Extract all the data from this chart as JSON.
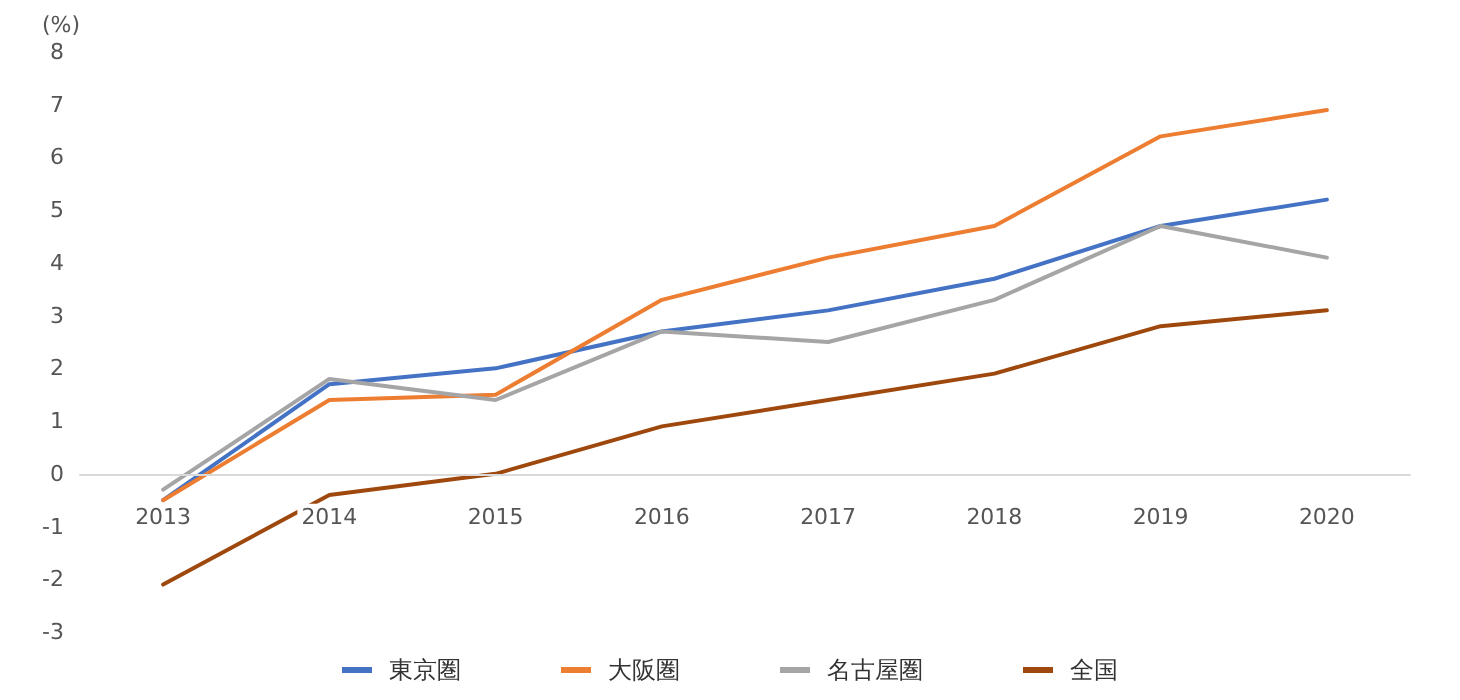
{
  "chart_data": {
    "type": "line",
    "ylabel": "(%)",
    "categories": [
      "2013",
      "2014",
      "2015",
      "2016",
      "2017",
      "2018",
      "2019",
      "2020"
    ],
    "series": [
      {
        "name": "東京圏",
        "color": "#4472c4",
        "values": [
          -0.5,
          1.7,
          2.0,
          2.7,
          3.1,
          3.7,
          4.7,
          5.2
        ]
      },
      {
        "name": "大阪圏",
        "color": "#ed7d31",
        "values": [
          -0.5,
          1.4,
          1.5,
          3.3,
          4.1,
          4.7,
          6.4,
          6.9
        ]
      },
      {
        "name": "名古屋圏",
        "color": "#a5a5a5",
        "values": [
          -0.3,
          1.8,
          1.4,
          2.7,
          2.5,
          3.3,
          4.7,
          4.1
        ]
      },
      {
        "name": "全国",
        "color": "#9e480e",
        "values": [
          -2.1,
          -0.4,
          0.0,
          0.9,
          1.4,
          1.9,
          2.8,
          3.1
        ]
      }
    ],
    "ylim": [
      -3,
      8
    ],
    "yticks": [
      -3,
      -2,
      -1,
      0,
      1,
      2,
      3,
      4,
      5,
      6,
      7,
      8
    ],
    "grid": false,
    "legend": "bottom",
    "marker": "none",
    "line_style": "solid"
  }
}
